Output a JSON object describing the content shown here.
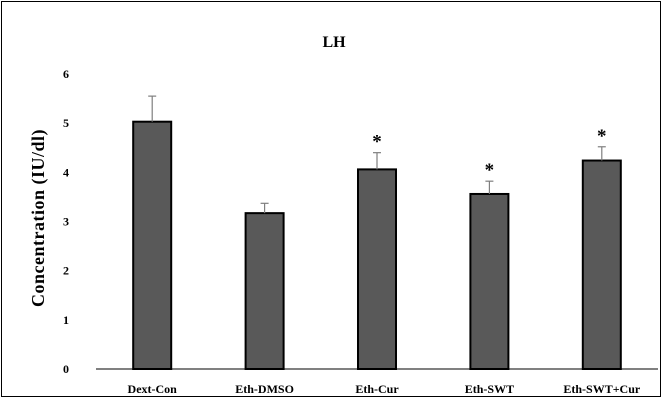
{
  "chart_data": {
    "type": "bar",
    "title": "LH",
    "xlabel": "",
    "ylabel": "Concentration  (IU/dl)",
    "ylim": [
      0,
      6
    ],
    "yticks": [
      "0",
      "1",
      "2",
      "3",
      "4",
      "5",
      "6"
    ],
    "grid": false,
    "categories": [
      "Dext-Con",
      "Eth-DMSO",
      "Eth-Cur",
      "Eth-SWT",
      "Eth-SWT+Cur"
    ],
    "values": [
      5.03,
      3.17,
      4.06,
      3.56,
      4.24
    ],
    "errors": [
      0.52,
      0.2,
      0.34,
      0.26,
      0.28
    ],
    "annotations": [
      "",
      "",
      "*",
      "*",
      "*"
    ],
    "colors": {
      "bar_fill": "#595959",
      "bar_edge": "#000000",
      "error_bar": "#7f7f7f"
    }
  }
}
